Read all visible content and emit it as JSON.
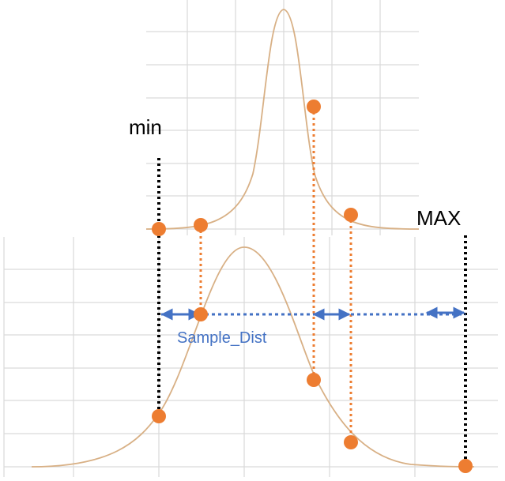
{
  "labels": {
    "min": "min",
    "max": "MAX",
    "sample_dist": "Sample_Dist"
  },
  "colors": {
    "grid": "#d9d9d9",
    "curve": "#d8b085",
    "dot": "#ed7d31",
    "orange_dotted": "#ed7d31",
    "blue_arrow": "#4472c4",
    "black_dotted": "#000000",
    "label_text": "#000000",
    "sample_dist_text": "#4472c4"
  }
}
